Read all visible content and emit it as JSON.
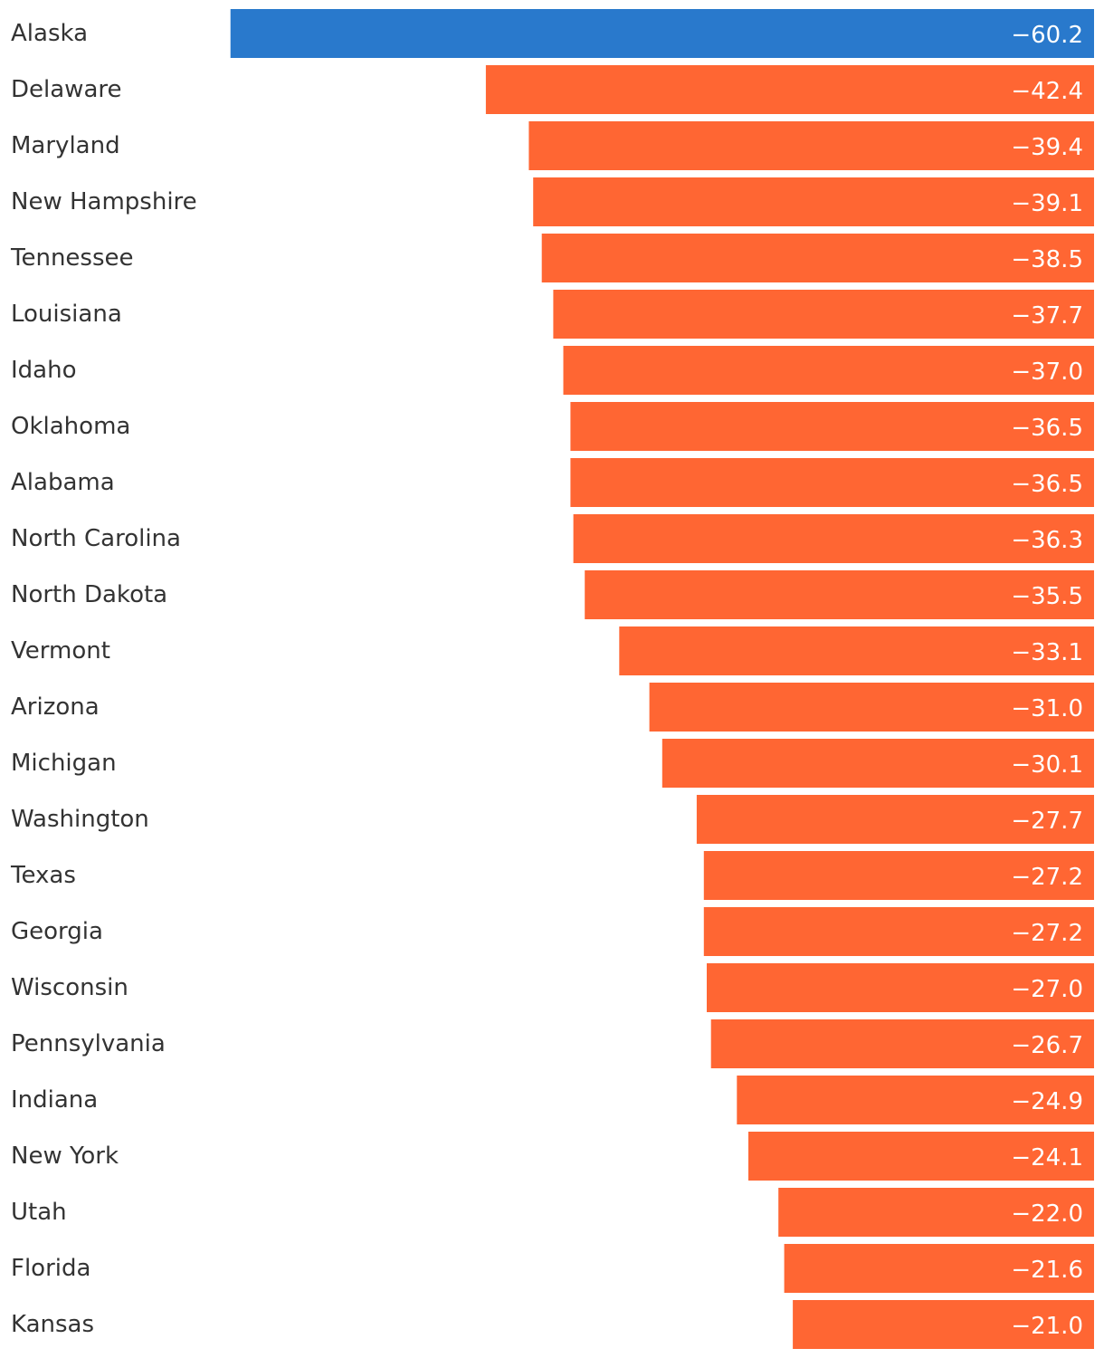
{
  "chart_data": {
    "type": "bar",
    "orientation": "horizontal",
    "title": "",
    "xlabel": "",
    "ylabel": "",
    "xlim": [
      -61.0,
      0
    ],
    "grid": false,
    "legend": "none",
    "highlight_color": "#2979CC",
    "default_color": "#FF6633",
    "highlighted_category": "Alaska",
    "categories": [
      "Alaska",
      "Delaware",
      "Maryland",
      "New Hampshire",
      "Tennessee",
      "Louisiana",
      "Idaho",
      "Oklahoma",
      "Alabama",
      "North Carolina",
      "North Dakota",
      "Vermont",
      "Arizona",
      "Michigan",
      "Washington",
      "Texas",
      "Georgia",
      "Wisconsin",
      "Pennsylvania",
      "Indiana",
      "New York",
      "Utah",
      "Florida",
      "Kansas"
    ],
    "values": [
      -60.2,
      -42.4,
      -39.4,
      -39.1,
      -38.5,
      -37.7,
      -37.0,
      -36.5,
      -36.5,
      -36.3,
      -35.5,
      -33.1,
      -31.0,
      -30.1,
      -27.7,
      -27.2,
      -27.2,
      -27.0,
      -26.7,
      -24.9,
      -24.1,
      -22.0,
      -21.6,
      -21.0
    ],
    "value_labels": [
      "−60.2",
      "−42.4",
      "−39.4",
      "−39.1",
      "−38.5",
      "−37.7",
      "−37.0",
      "−36.5",
      "−36.5",
      "−36.3",
      "−35.5",
      "−33.1",
      "−31.0",
      "−30.1",
      "−27.7",
      "−27.2",
      "−27.2",
      "−27.0",
      "−26.7",
      "−24.9",
      "−24.1",
      "−22.0",
      "−21.6",
      "−21.0"
    ]
  }
}
